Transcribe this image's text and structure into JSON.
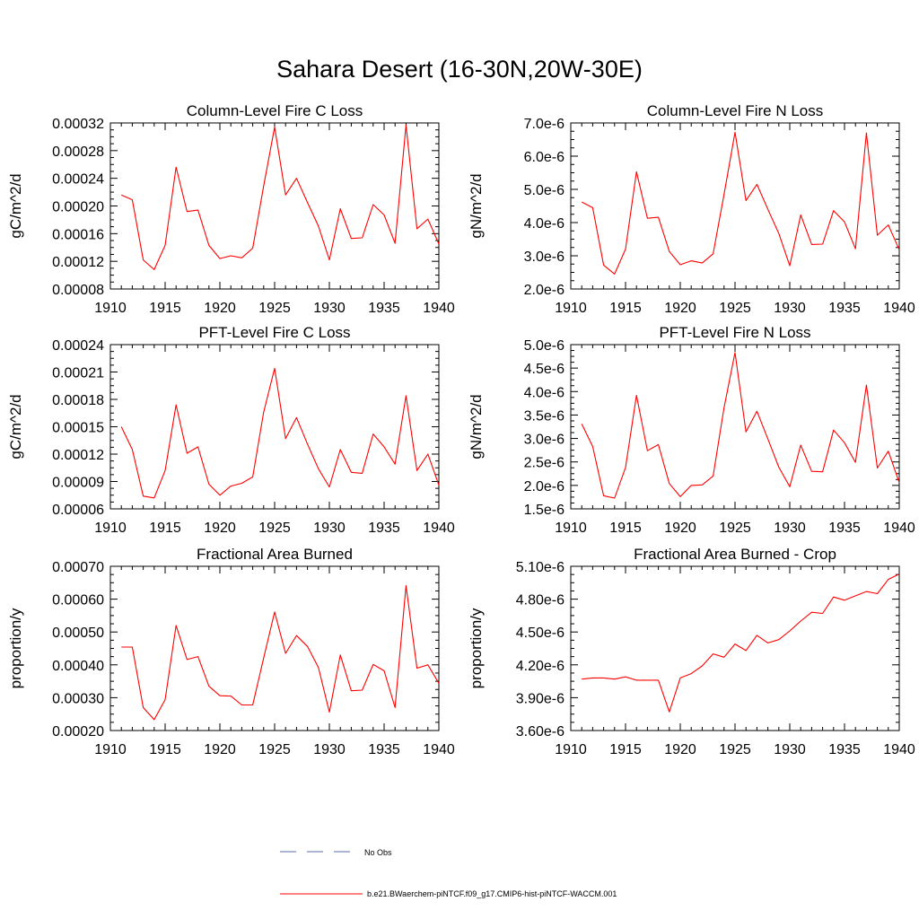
{
  "figure": {
    "title": "Sahara Desert (16-30N,20W-30E)"
  },
  "legend": {
    "items": [
      {
        "label": "No Obs",
        "color": "#5a6ab0",
        "style": "dashed"
      },
      {
        "label": "b.e21.BWaerchem-piNTCF.f09_g17.CMIP6-hist-piNTCF-WACCM.001",
        "color": "#ff0000",
        "style": "solid"
      }
    ]
  },
  "chart_data": [
    {
      "type": "line",
      "title": "Column-Level Fire C Loss",
      "xlabel": "",
      "ylabel": "gC/m^2/d",
      "xlim": [
        1910,
        1940
      ],
      "ylim": [
        8e-05,
        0.00032
      ],
      "xticks": [
        1910,
        1915,
        1920,
        1925,
        1930,
        1935,
        1940
      ],
      "yticks": [
        8e-05,
        0.00012,
        0.00016,
        0.0002,
        0.00024,
        0.00028,
        0.00032
      ],
      "ytick_labels": [
        "0.00008",
        "0.00012",
        "0.00016",
        "0.00020",
        "0.00024",
        "0.00028",
        "0.00032"
      ],
      "series": [
        {
          "color": "#ff0000",
          "x": [
            1911,
            1912,
            1913,
            1914,
            1915,
            1916,
            1917,
            1918,
            1919,
            1920,
            1921,
            1922,
            1923,
            1924,
            1925,
            1926,
            1927,
            1928,
            1929,
            1930,
            1931,
            1932,
            1933,
            1934,
            1935,
            1936,
            1937,
            1938,
            1939,
            1940
          ],
          "y": [
            0.000216,
            0.000209,
            0.000122,
            0.000108,
            0.000143,
            0.000256,
            0.000192,
            0.000194,
            0.000143,
            0.000124,
            0.000128,
            0.000125,
            0.000139,
            0.000229,
            0.000314,
            0.000216,
            0.00024,
            0.000205,
            0.000171,
            0.000122,
            0.000196,
            0.000153,
            0.000154,
            0.000202,
            0.000187,
            0.000146,
            0.000317,
            0.000167,
            0.000181,
            0.000145
          ]
        }
      ]
    },
    {
      "type": "line",
      "title": "Column-Level Fire N Loss",
      "xlabel": "",
      "ylabel": "gN/m^2/d",
      "xlim": [
        1910,
        1940
      ],
      "ylim": [
        2e-06,
        7e-06
      ],
      "xticks": [
        1910,
        1915,
        1920,
        1925,
        1930,
        1935,
        1940
      ],
      "yticks": [
        2e-06,
        3e-06,
        4e-06,
        5e-06,
        6e-06,
        7e-06
      ],
      "ytick_labels": [
        "2.0e-6",
        "3.0e-6",
        "4.0e-6",
        "5.0e-6",
        "6.0e-6",
        "7.0e-6"
      ],
      "series": [
        {
          "color": "#ff0000",
          "x": [
            1911,
            1912,
            1913,
            1914,
            1915,
            1916,
            1917,
            1918,
            1919,
            1920,
            1921,
            1922,
            1923,
            1924,
            1925,
            1926,
            1927,
            1928,
            1929,
            1930,
            1931,
            1932,
            1933,
            1934,
            1935,
            1936,
            1937,
            1938,
            1939,
            1940
          ],
          "y": [
            4.62e-06,
            4.45e-06,
            2.72e-06,
            2.45e-06,
            3.2e-06,
            5.53e-06,
            4.13e-06,
            4.16e-06,
            3.13e-06,
            2.73e-06,
            2.85e-06,
            2.78e-06,
            3.06e-06,
            4.85e-06,
            6.72e-06,
            4.66e-06,
            5.15e-06,
            4.4e-06,
            3.67e-06,
            2.7e-06,
            4.23e-06,
            3.34e-06,
            3.35e-06,
            4.36e-06,
            4.02e-06,
            3.21e-06,
            6.7e-06,
            3.62e-06,
            3.93e-06,
            3.18e-06
          ]
        }
      ]
    },
    {
      "type": "line",
      "title": "PFT-Level Fire C Loss",
      "xlabel": "",
      "ylabel": "gC/m^2/d",
      "xlim": [
        1910,
        1940
      ],
      "ylim": [
        6e-05,
        0.00024
      ],
      "xticks": [
        1910,
        1915,
        1920,
        1925,
        1930,
        1935,
        1940
      ],
      "yticks": [
        6e-05,
        9e-05,
        0.00012,
        0.00015,
        0.00018,
        0.00021,
        0.00024
      ],
      "ytick_labels": [
        "0.00006",
        "0.00009",
        "0.00012",
        "0.00015",
        "0.00018",
        "0.00021",
        "0.00024"
      ],
      "series": [
        {
          "color": "#ff0000",
          "x": [
            1911,
            1912,
            1913,
            1914,
            1915,
            1916,
            1917,
            1918,
            1919,
            1920,
            1921,
            1922,
            1923,
            1924,
            1925,
            1926,
            1927,
            1928,
            1929,
            1930,
            1931,
            1932,
            1933,
            1934,
            1935,
            1936,
            1937,
            1938,
            1939,
            1940
          ],
          "y": [
            0.00015,
            0.000125,
            7.4e-05,
            7.2e-05,
            0.000102,
            0.000174,
            0.000121,
            0.000128,
            8.7e-05,
            7.5e-05,
            8.5e-05,
            8.8e-05,
            9.5e-05,
            0.000166,
            0.000214,
            0.000137,
            0.00016,
            0.000131,
            0.000104,
            8.4e-05,
            0.000125,
            0.0001,
            9.9e-05,
            0.000142,
            0.000128,
            0.000109,
            0.000184,
            0.000102,
            0.00012,
            8.6e-05
          ]
        }
      ]
    },
    {
      "type": "line",
      "title": "PFT-Level Fire N Loss",
      "xlabel": "",
      "ylabel": "gN/m^2/d",
      "xlim": [
        1910,
        1940
      ],
      "ylim": [
        1.5e-06,
        5e-06
      ],
      "xticks": [
        1910,
        1915,
        1920,
        1925,
        1930,
        1935,
        1940
      ],
      "yticks": [
        1.5e-06,
        2e-06,
        2.5e-06,
        3e-06,
        3.5e-06,
        4e-06,
        4.5e-06,
        5e-06
      ],
      "ytick_labels": [
        "1.5e-6",
        "2.0e-6",
        "2.5e-6",
        "3.0e-6",
        "3.5e-6",
        "4.0e-6",
        "4.5e-6",
        "5.0e-6"
      ],
      "series": [
        {
          "color": "#ff0000",
          "x": [
            1911,
            1912,
            1913,
            1914,
            1915,
            1916,
            1917,
            1918,
            1919,
            1920,
            1921,
            1922,
            1923,
            1924,
            1925,
            1926,
            1927,
            1928,
            1929,
            1930,
            1931,
            1932,
            1933,
            1934,
            1935,
            1936,
            1937,
            1938,
            1939,
            1940
          ],
          "y": [
            3.31e-06,
            2.83e-06,
            1.78e-06,
            1.73e-06,
            2.38e-06,
            3.92e-06,
            2.74e-06,
            2.87e-06,
            2.04e-06,
            1.76e-06,
            2e-06,
            2.01e-06,
            2.2e-06,
            3.66e-06,
            4.83e-06,
            3.14e-06,
            3.58e-06,
            2.99e-06,
            2.39e-06,
            1.97e-06,
            2.86e-06,
            2.3e-06,
            2.29e-06,
            3.18e-06,
            2.91e-06,
            2.49e-06,
            4.14e-06,
            2.37e-06,
            2.73e-06,
            2.06e-06
          ]
        }
      ]
    },
    {
      "type": "line",
      "title": "Fractional Area Burned",
      "xlabel": "",
      "ylabel": "proportion/y",
      "xlim": [
        1910,
        1940
      ],
      "ylim": [
        0.0002,
        0.0007
      ],
      "xticks": [
        1910,
        1915,
        1920,
        1925,
        1930,
        1935,
        1940
      ],
      "yticks": [
        0.0002,
        0.0003,
        0.0004,
        0.0005,
        0.0006,
        0.0007
      ],
      "ytick_labels": [
        "0.00020",
        "0.00030",
        "0.00040",
        "0.00050",
        "0.00060",
        "0.00070"
      ],
      "series": [
        {
          "color": "#ff0000",
          "x": [
            1911,
            1912,
            1913,
            1914,
            1915,
            1916,
            1917,
            1918,
            1919,
            1920,
            1921,
            1922,
            1923,
            1924,
            1925,
            1926,
            1927,
            1928,
            1929,
            1930,
            1931,
            1932,
            1933,
            1934,
            1935,
            1936,
            1937,
            1938,
            1939,
            1940
          ],
          "y": [
            0.000454,
            0.000454,
            0.00027,
            0.000233,
            0.000294,
            0.00052,
            0.000416,
            0.000425,
            0.000335,
            0.000306,
            0.000305,
            0.000278,
            0.000278,
            0.000421,
            0.000561,
            0.000435,
            0.000489,
            0.000456,
            0.000392,
            0.000256,
            0.00043,
            0.000321,
            0.000323,
            0.000401,
            0.000382,
            0.00027,
            0.000641,
            0.00039,
            0.0004,
            0.000344
          ]
        }
      ]
    },
    {
      "type": "line",
      "title": "Fractional Area Burned - Crop",
      "xlabel": "",
      "ylabel": "proportion/y",
      "xlim": [
        1910,
        1940
      ],
      "ylim": [
        3.6e-06,
        5.1e-06
      ],
      "xticks": [
        1910,
        1915,
        1920,
        1925,
        1930,
        1935,
        1940
      ],
      "yticks": [
        3.6e-06,
        3.9e-06,
        4.2e-06,
        4.5e-06,
        4.8e-06,
        5.1e-06
      ],
      "ytick_labels": [
        "3.60e-6",
        "3.90e-6",
        "4.20e-6",
        "4.50e-6",
        "4.80e-6",
        "5.10e-6"
      ],
      "series": [
        {
          "color": "#ff0000",
          "x": [
            1911,
            1912,
            1913,
            1914,
            1915,
            1916,
            1917,
            1918,
            1919,
            1920,
            1921,
            1922,
            1923,
            1924,
            1925,
            1926,
            1927,
            1928,
            1929,
            1930,
            1931,
            1932,
            1933,
            1934,
            1935,
            1936,
            1937,
            1938,
            1939,
            1940
          ],
          "y": [
            4.07e-06,
            4.08e-06,
            4.08e-06,
            4.07e-06,
            4.09e-06,
            4.06e-06,
            4.06e-06,
            4.06e-06,
            3.77e-06,
            4.08e-06,
            4.12e-06,
            4.19e-06,
            4.3e-06,
            4.27e-06,
            4.39e-06,
            4.33e-06,
            4.47e-06,
            4.4e-06,
            4.43e-06,
            4.51e-06,
            4.6e-06,
            4.68e-06,
            4.67e-06,
            4.82e-06,
            4.79e-06,
            4.83e-06,
            4.87e-06,
            4.85e-06,
            4.98e-06,
            5.03e-06
          ]
        }
      ]
    }
  ]
}
